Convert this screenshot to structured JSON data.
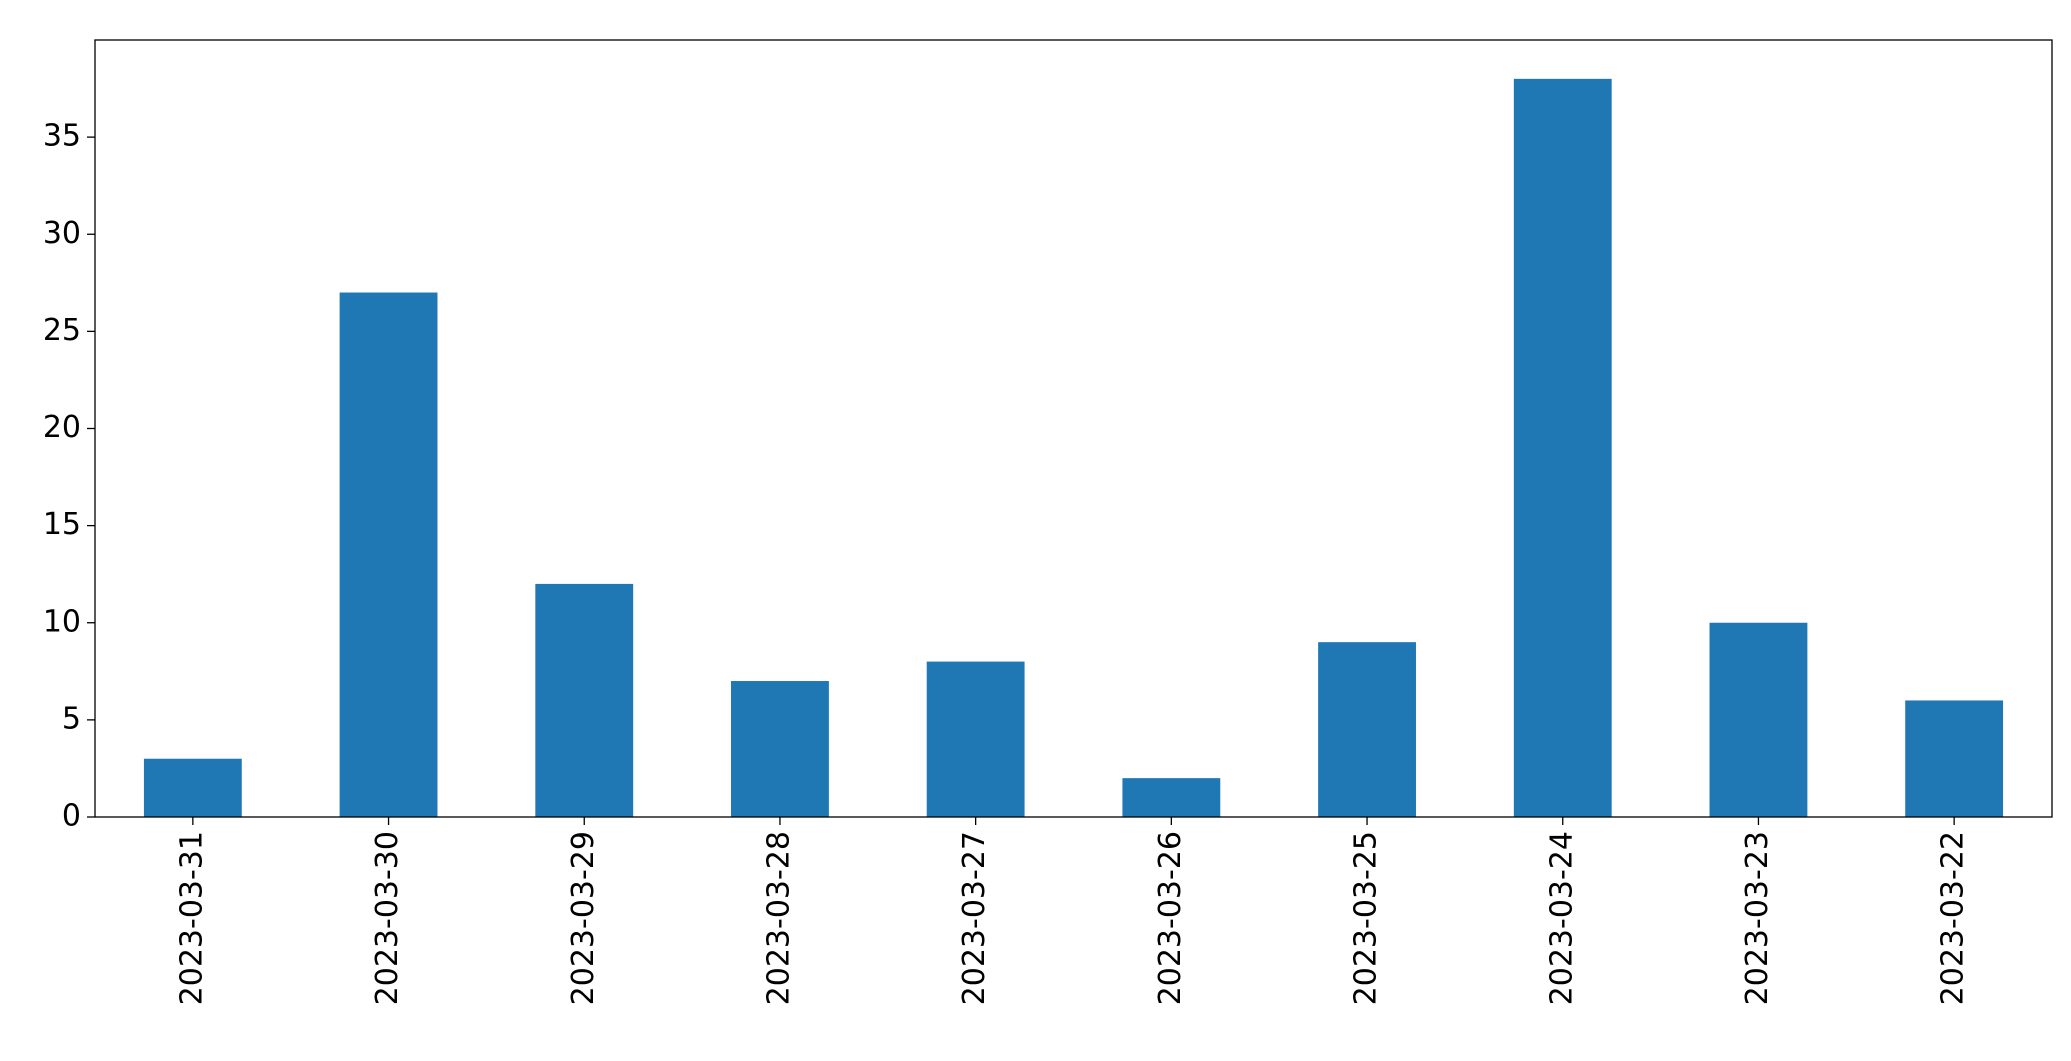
{
  "chart_data": {
    "type": "bar",
    "categories": [
      "2023-03-31",
      "2023-03-30",
      "2023-03-29",
      "2023-03-28",
      "2023-03-27",
      "2023-03-26",
      "2023-03-25",
      "2023-03-24",
      "2023-03-23",
      "2023-03-22"
    ],
    "values": [
      3,
      27,
      12,
      7,
      8,
      2,
      9,
      38,
      10,
      6
    ],
    "color": "#1f77b4",
    "ylim": [
      0,
      40
    ],
    "yticks": [
      0,
      5,
      10,
      15,
      20,
      25,
      30,
      35
    ],
    "grid": false
  }
}
